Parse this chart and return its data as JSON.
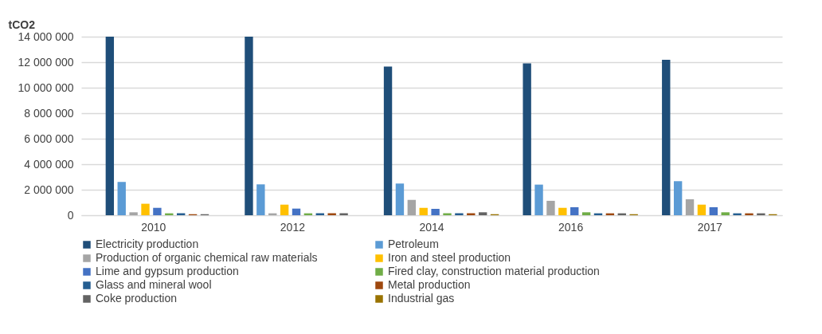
{
  "chart_data": {
    "type": "bar",
    "ylabel": "tCO2",
    "categories": [
      "2010",
      "2012",
      "2014",
      "2016",
      "2017"
    ],
    "series": [
      {
        "name": "Electricity production",
        "color": "#1f4e79",
        "values": [
          14000000,
          14000000,
          11650000,
          11900000,
          12190000
        ]
      },
      {
        "name": "Petroleum",
        "color": "#5b9bd5",
        "values": [
          2610000,
          2420000,
          2480000,
          2400000,
          2670000
        ]
      },
      {
        "name": "Production of organic chemical raw materials",
        "color": "#a5a5a5",
        "values": [
          230000,
          150000,
          1210000,
          1130000,
          1250000
        ]
      },
      {
        "name": "Iron and steel production",
        "color": "#ffc000",
        "values": [
          900000,
          830000,
          580000,
          580000,
          830000
        ]
      },
      {
        "name": "Lime and gypsum production",
        "color": "#4472c4",
        "values": [
          580000,
          520000,
          500000,
          630000,
          630000
        ]
      },
      {
        "name": "Fired clay, construction material production",
        "color": "#70ad47",
        "values": [
          150000,
          150000,
          150000,
          230000,
          230000
        ]
      },
      {
        "name": "Glass and mineral wool",
        "color": "#255e91",
        "values": [
          150000,
          150000,
          150000,
          150000,
          150000
        ]
      },
      {
        "name": "Metal production",
        "color": "#9e480e",
        "values": [
          80000,
          150000,
          150000,
          150000,
          150000
        ]
      },
      {
        "name": "Coke production",
        "color": "#636363",
        "values": [
          80000,
          150000,
          230000,
          150000,
          150000
        ]
      },
      {
        "name": "Industrial gas",
        "color": "#997300",
        "values": [
          null,
          null,
          80000,
          80000,
          80000
        ]
      }
    ],
    "ylim": [
      0,
      14000000
    ],
    "yticks": [
      {
        "value": 0,
        "label": "0"
      },
      {
        "value": 2000000,
        "label": "2 000 000"
      },
      {
        "value": 4000000,
        "label": "4 000 000"
      },
      {
        "value": 6000000,
        "label": "6 000 000"
      },
      {
        "value": 8000000,
        "label": "8 000 000"
      },
      {
        "value": 10000000,
        "label": "10 000 000"
      },
      {
        "value": 12000000,
        "label": "12 000 000"
      },
      {
        "value": 14000000,
        "label": "14 000 000"
      }
    ],
    "grid": "y",
    "legend": "bottom"
  }
}
